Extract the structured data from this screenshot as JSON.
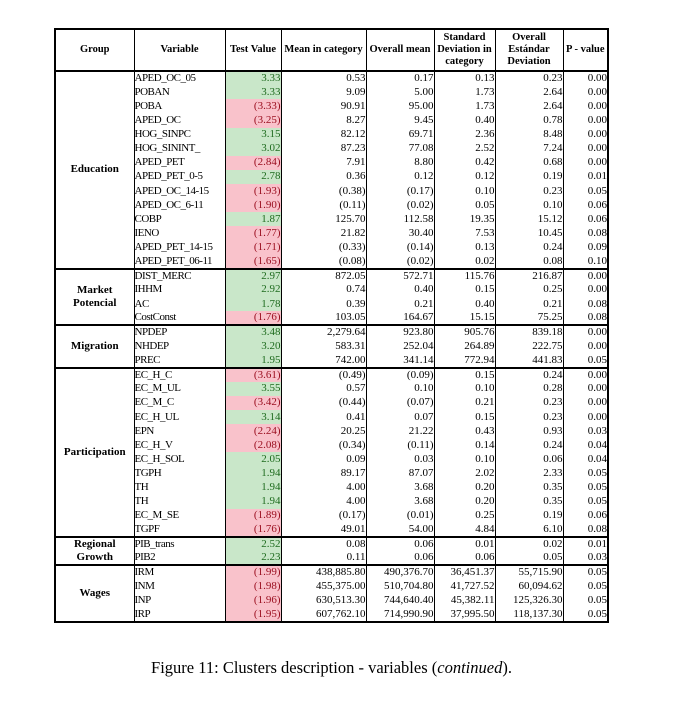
{
  "colors": {
    "positive_fill": "#c9e7c9",
    "positive_text": "#1e6b1e",
    "negative_fill": "#f9c2cb",
    "negative_text": "#9b0f20",
    "border": "#000000"
  },
  "table": {
    "headers": [
      "Group",
      "Variable",
      "Test Value",
      "Mean in category",
      "Overall mean",
      "Standard Deviation in category",
      "Overall Estándar Deviation",
      "P - value"
    ],
    "groups": [
      {
        "name": "Education",
        "rows": [
          {
            "variable": "APED_OC_05",
            "test_value": "3.33",
            "test_sign": "positive",
            "mean_in_category": "0.53",
            "overall_mean": "0.17",
            "std_dev_in_category": "0.13",
            "overall_std_dev": "0.23",
            "p_value": "0.00"
          },
          {
            "variable": "POBAN",
            "test_value": "3.33",
            "test_sign": "positive",
            "mean_in_category": "9.09",
            "overall_mean": "5.00",
            "std_dev_in_category": "1.73",
            "overall_std_dev": "2.64",
            "p_value": "0.00"
          },
          {
            "variable": "POBA",
            "test_value": "(3.33)",
            "test_sign": "negative",
            "mean_in_category": "90.91",
            "overall_mean": "95.00",
            "std_dev_in_category": "1.73",
            "overall_std_dev": "2.64",
            "p_value": "0.00"
          },
          {
            "variable": "APED_OC",
            "test_value": "(3.25)",
            "test_sign": "negative",
            "mean_in_category": "8.27",
            "overall_mean": "9.45",
            "std_dev_in_category": "0.40",
            "overall_std_dev": "0.78",
            "p_value": "0.00"
          },
          {
            "variable": "HOG_SINPC",
            "test_value": "3.15",
            "test_sign": "positive",
            "mean_in_category": "82.12",
            "overall_mean": "69.71",
            "std_dev_in_category": "2.36",
            "overall_std_dev": "8.48",
            "p_value": "0.00"
          },
          {
            "variable": "HOG_SININT_",
            "test_value": "3.02",
            "test_sign": "positive",
            "mean_in_category": "87.23",
            "overall_mean": "77.08",
            "std_dev_in_category": "2.52",
            "overall_std_dev": "7.24",
            "p_value": "0.00"
          },
          {
            "variable": "APED_PET",
            "test_value": "(2.84)",
            "test_sign": "negative",
            "mean_in_category": "7.91",
            "overall_mean": "8.80",
            "std_dev_in_category": "0.42",
            "overall_std_dev": "0.68",
            "p_value": "0.00"
          },
          {
            "variable": "APED_PET_0-5",
            "test_value": "2.78",
            "test_sign": "positive",
            "mean_in_category": "0.36",
            "overall_mean": "0.12",
            "std_dev_in_category": "0.12",
            "overall_std_dev": "0.19",
            "p_value": "0.01"
          },
          {
            "variable": "APED_OC_14-15",
            "test_value": "(1.93)",
            "test_sign": "negative",
            "mean_in_category": "(0.38)",
            "overall_mean": "(0.17)",
            "std_dev_in_category": "0.10",
            "overall_std_dev": "0.23",
            "p_value": "0.05"
          },
          {
            "variable": "APED_OC_6-11",
            "test_value": "(1.90)",
            "test_sign": "negative",
            "mean_in_category": "(0.11)",
            "overall_mean": "(0.02)",
            "std_dev_in_category": "0.05",
            "overall_std_dev": "0.10",
            "p_value": "0.06"
          },
          {
            "variable": "COBP",
            "test_value": "1.87",
            "test_sign": "positive",
            "mean_in_category": "125.70",
            "overall_mean": "112.58",
            "std_dev_in_category": "19.35",
            "overall_std_dev": "15.12",
            "p_value": "0.06"
          },
          {
            "variable": "IENO",
            "test_value": "(1.77)",
            "test_sign": "negative",
            "mean_in_category": "21.82",
            "overall_mean": "30.40",
            "std_dev_in_category": "7.53",
            "overall_std_dev": "10.45",
            "p_value": "0.08"
          },
          {
            "variable": "APED_PET_14-15",
            "test_value": "(1.71)",
            "test_sign": "negative",
            "mean_in_category": "(0.33)",
            "overall_mean": "(0.14)",
            "std_dev_in_category": "0.13",
            "overall_std_dev": "0.24",
            "p_value": "0.09"
          },
          {
            "variable": "APED_PET_06-11",
            "test_value": "(1.65)",
            "test_sign": "negative",
            "mean_in_category": "(0.08)",
            "overall_mean": "(0.02)",
            "std_dev_in_category": "0.02",
            "overall_std_dev": "0.08",
            "p_value": "0.10"
          }
        ]
      },
      {
        "name": "Market Potencial",
        "rows": [
          {
            "variable": "DIST_MERC",
            "test_value": "2.97",
            "test_sign": "positive",
            "mean_in_category": "872.05",
            "overall_mean": "572.71",
            "std_dev_in_category": "115.76",
            "overall_std_dev": "216.87",
            "p_value": "0.00"
          },
          {
            "variable": "IHHM",
            "test_value": "2.92",
            "test_sign": "positive",
            "mean_in_category": "0.74",
            "overall_mean": "0.40",
            "std_dev_in_category": "0.15",
            "overall_std_dev": "0.25",
            "p_value": "0.00"
          },
          {
            "variable": "AC",
            "test_value": "1.78",
            "test_sign": "positive",
            "mean_in_category": "0.39",
            "overall_mean": "0.21",
            "std_dev_in_category": "0.40",
            "overall_std_dev": "0.21",
            "p_value": "0.08"
          },
          {
            "variable": "CostConst",
            "test_value": "(1.76)",
            "test_sign": "negative",
            "mean_in_category": "103.05",
            "overall_mean": "164.67",
            "std_dev_in_category": "15.15",
            "overall_std_dev": "75.25",
            "p_value": "0.08"
          }
        ]
      },
      {
        "name": "Migration",
        "rows": [
          {
            "variable": "NPDEP",
            "test_value": "3.48",
            "test_sign": "positive",
            "mean_in_category": "2,279.64",
            "overall_mean": "923.80",
            "std_dev_in_category": "905.76",
            "overall_std_dev": "839.18",
            "p_value": "0.00"
          },
          {
            "variable": "NHDEP",
            "test_value": "3.20",
            "test_sign": "positive",
            "mean_in_category": "583.31",
            "overall_mean": "252.04",
            "std_dev_in_category": "264.89",
            "overall_std_dev": "222.75",
            "p_value": "0.00"
          },
          {
            "variable": "PREC",
            "test_value": "1.95",
            "test_sign": "positive",
            "mean_in_category": "742.00",
            "overall_mean": "341.14",
            "std_dev_in_category": "772.94",
            "overall_std_dev": "441.83",
            "p_value": "0.05"
          }
        ]
      },
      {
        "name": "Participation",
        "rows": [
          {
            "variable": "EC_H_C",
            "test_value": "(3.61)",
            "test_sign": "negative",
            "mean_in_category": "(0.49)",
            "overall_mean": "(0.09)",
            "std_dev_in_category": "0.15",
            "overall_std_dev": "0.24",
            "p_value": "0.00"
          },
          {
            "variable": "EC_M_UL",
            "test_value": "3.55",
            "test_sign": "positive",
            "mean_in_category": "0.57",
            "overall_mean": "0.10",
            "std_dev_in_category": "0.10",
            "overall_std_dev": "0.28",
            "p_value": "0.00"
          },
          {
            "variable": "EC_M_C",
            "test_value": "(3.42)",
            "test_sign": "negative",
            "mean_in_category": "(0.44)",
            "overall_mean": "(0.07)",
            "std_dev_in_category": "0.21",
            "overall_std_dev": "0.23",
            "p_value": "0.00"
          },
          {
            "variable": "EC_H_UL",
            "test_value": "3.14",
            "test_sign": "positive",
            "mean_in_category": "0.41",
            "overall_mean": "0.07",
            "std_dev_in_category": "0.15",
            "overall_std_dev": "0.23",
            "p_value": "0.00"
          },
          {
            "variable": "EPN",
            "test_value": "(2.24)",
            "test_sign": "negative",
            "mean_in_category": "20.25",
            "overall_mean": "21.22",
            "std_dev_in_category": "0.43",
            "overall_std_dev": "0.93",
            "p_value": "0.03"
          },
          {
            "variable": "EC_H_V",
            "test_value": "(2.08)",
            "test_sign": "negative",
            "mean_in_category": "(0.34)",
            "overall_mean": "(0.11)",
            "std_dev_in_category": "0.14",
            "overall_std_dev": "0.24",
            "p_value": "0.04"
          },
          {
            "variable": "EC_H_SOL",
            "test_value": "2.05",
            "test_sign": "positive",
            "mean_in_category": "0.09",
            "overall_mean": "0.03",
            "std_dev_in_category": "0.10",
            "overall_std_dev": "0.06",
            "p_value": "0.04"
          },
          {
            "variable": "TGPH",
            "test_value": "1.94",
            "test_sign": "positive",
            "mean_in_category": "89.17",
            "overall_mean": "87.07",
            "std_dev_in_category": "2.02",
            "overall_std_dev": "2.33",
            "p_value": "0.05"
          },
          {
            "variable": "TH",
            "test_value": "1.94",
            "test_sign": "positive",
            "mean_in_category": "4.00",
            "overall_mean": "3.68",
            "std_dev_in_category": "0.20",
            "overall_std_dev": "0.35",
            "p_value": "0.05"
          },
          {
            "variable": "TH",
            "test_value": "1.94",
            "test_sign": "positive",
            "mean_in_category": "4.00",
            "overall_mean": "3.68",
            "std_dev_in_category": "0.20",
            "overall_std_dev": "0.35",
            "p_value": "0.05"
          },
          {
            "variable": "EC_M_SE",
            "test_value": "(1.89)",
            "test_sign": "negative",
            "mean_in_category": "(0.17)",
            "overall_mean": "(0.01)",
            "std_dev_in_category": "0.25",
            "overall_std_dev": "0.19",
            "p_value": "0.06"
          },
          {
            "variable": "TGPF",
            "test_value": "(1.76)",
            "test_sign": "negative",
            "mean_in_category": "49.01",
            "overall_mean": "54.00",
            "std_dev_in_category": "4.84",
            "overall_std_dev": "6.10",
            "p_value": "0.08"
          }
        ]
      },
      {
        "name": "Regional Growth",
        "rows": [
          {
            "variable": "PIB_trans",
            "test_value": "2.52",
            "test_sign": "positive",
            "mean_in_category": "0.08",
            "overall_mean": "0.06",
            "std_dev_in_category": "0.01",
            "overall_std_dev": "0.02",
            "p_value": "0.01"
          },
          {
            "variable": "PIB2",
            "test_value": "2.23",
            "test_sign": "positive",
            "mean_in_category": "0.11",
            "overall_mean": "0.06",
            "std_dev_in_category": "0.06",
            "overall_std_dev": "0.05",
            "p_value": "0.03"
          }
        ]
      },
      {
        "name": "Wages",
        "rows": [
          {
            "variable": "IRM",
            "test_value": "(1.99)",
            "test_sign": "negative",
            "mean_in_category": "438,885.80",
            "overall_mean": "490,376.70",
            "std_dev_in_category": "36,451.37",
            "overall_std_dev": "55,715.90",
            "p_value": "0.05"
          },
          {
            "variable": "INM",
            "test_value": "(1.98)",
            "test_sign": "negative",
            "mean_in_category": "455,375.00",
            "overall_mean": "510,704.80",
            "std_dev_in_category": "41,727.52",
            "overall_std_dev": "60,094.62",
            "p_value": "0.05"
          },
          {
            "variable": "INP",
            "test_value": "(1.96)",
            "test_sign": "negative",
            "mean_in_category": "630,513.30",
            "overall_mean": "744,640.40",
            "std_dev_in_category": "45,382.11",
            "overall_std_dev": "125,326.30",
            "p_value": "0.05"
          },
          {
            "variable": "IRP",
            "test_value": "(1.95)",
            "test_sign": "negative",
            "mean_in_category": "607,762.10",
            "overall_mean": "714,990.90",
            "std_dev_in_category": "37,995.50",
            "overall_std_dev": "118,137.30",
            "p_value": "0.05"
          }
        ]
      }
    ]
  },
  "caption": {
    "prefix": "Figure 11: Clusters description - variables (",
    "italic": "continued",
    "suffix": ")."
  }
}
